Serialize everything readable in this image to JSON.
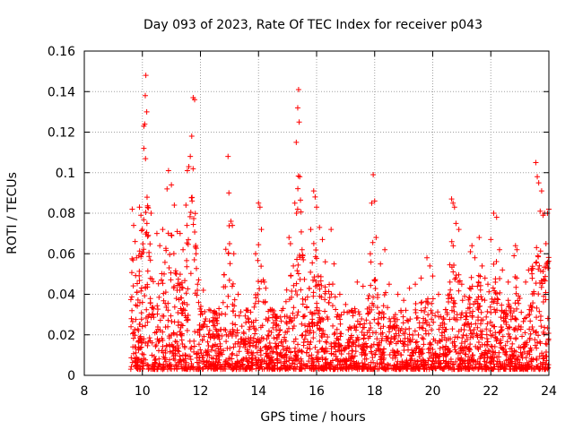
{
  "chart_data": {
    "type": "scatter",
    "title": "Day 093 of 2023, Rate Of TEC Index for receiver p043",
    "xlabel": "GPS time / hours",
    "ylabel": "ROTI / TECUs",
    "xlim": [
      8,
      24
    ],
    "ylim": [
      0,
      0.16
    ],
    "x_ticks": [
      "8",
      "10",
      "12",
      "14",
      "16",
      "18",
      "20",
      "22",
      "24"
    ],
    "y_ticks": [
      "0",
      "0.02",
      "0.04",
      "0.06",
      "0.08",
      "0.1",
      "0.12",
      "0.14",
      "0.16"
    ],
    "grid": true,
    "marker": "+",
    "color": "#ff0000",
    "time_range": [
      9.6,
      24.0
    ],
    "series": [
      {
        "name": "ROTI",
        "points": [
          [
            9.65,
            0.082
          ],
          [
            9.7,
            0.074
          ],
          [
            9.75,
            0.066
          ],
          [
            9.8,
            0.058
          ],
          [
            9.9,
            0.083
          ],
          [
            9.95,
            0.079
          ],
          [
            10.0,
            0.072
          ],
          [
            10.05,
            0.112
          ],
          [
            10.05,
            0.123
          ],
          [
            10.08,
            0.124
          ],
          [
            10.1,
            0.138
          ],
          [
            10.12,
            0.148
          ],
          [
            10.15,
            0.13
          ],
          [
            10.3,
            0.08
          ],
          [
            10.5,
            0.07
          ],
          [
            10.6,
            0.064
          ],
          [
            10.7,
            0.072
          ],
          [
            10.85,
            0.092
          ],
          [
            10.9,
            0.101
          ],
          [
            11.0,
            0.094
          ],
          [
            11.1,
            0.084
          ],
          [
            11.2,
            0.071
          ],
          [
            11.3,
            0.07
          ],
          [
            11.4,
            0.062
          ],
          [
            11.5,
            0.084
          ],
          [
            11.55,
            0.101
          ],
          [
            11.6,
            0.103
          ],
          [
            11.65,
            0.108
          ],
          [
            11.7,
            0.118
          ],
          [
            11.75,
            0.137
          ],
          [
            11.8,
            0.136
          ],
          [
            11.85,
            0.06
          ],
          [
            11.9,
            0.045
          ],
          [
            12.0,
            0.03
          ],
          [
            12.1,
            0.042
          ],
          [
            12.35,
            0.032
          ],
          [
            12.45,
            0.031
          ],
          [
            12.95,
            0.108
          ],
          [
            12.98,
            0.09
          ],
          [
            13.05,
            0.076
          ],
          [
            13.1,
            0.074
          ],
          [
            13.15,
            0.06
          ],
          [
            13.3,
            0.04
          ],
          [
            13.6,
            0.032
          ],
          [
            13.9,
            0.06
          ],
          [
            14.0,
            0.085
          ],
          [
            14.05,
            0.083
          ],
          [
            14.1,
            0.072
          ],
          [
            14.2,
            0.046
          ],
          [
            14.25,
            0.043
          ],
          [
            14.5,
            0.03
          ],
          [
            14.8,
            0.032
          ],
          [
            15.05,
            0.068
          ],
          [
            15.1,
            0.065
          ],
          [
            15.2,
            0.054
          ],
          [
            15.25,
            0.085
          ],
          [
            15.3,
            0.115
          ],
          [
            15.35,
            0.132
          ],
          [
            15.38,
            0.141
          ],
          [
            15.4,
            0.125
          ],
          [
            15.42,
            0.098
          ],
          [
            15.5,
            0.062
          ],
          [
            15.8,
            0.072
          ],
          [
            15.9,
            0.091
          ],
          [
            15.95,
            0.088
          ],
          [
            16.0,
            0.083
          ],
          [
            16.1,
            0.073
          ],
          [
            16.2,
            0.067
          ],
          [
            16.3,
            0.056
          ],
          [
            16.5,
            0.072
          ],
          [
            16.6,
            0.055
          ],
          [
            16.8,
            0.04
          ],
          [
            17.0,
            0.035
          ],
          [
            17.4,
            0.046
          ],
          [
            17.6,
            0.044
          ],
          [
            17.85,
            0.06
          ],
          [
            17.9,
            0.085
          ],
          [
            17.95,
            0.099
          ],
          [
            18.0,
            0.086
          ],
          [
            18.05,
            0.068
          ],
          [
            18.2,
            0.055
          ],
          [
            18.35,
            0.062
          ],
          [
            18.5,
            0.045
          ],
          [
            18.8,
            0.04
          ],
          [
            19.0,
            0.037
          ],
          [
            19.2,
            0.043
          ],
          [
            19.4,
            0.045
          ],
          [
            19.6,
            0.048
          ],
          [
            19.8,
            0.058
          ],
          [
            19.9,
            0.054
          ],
          [
            20.0,
            0.049
          ],
          [
            20.2,
            0.04
          ],
          [
            20.5,
            0.03
          ],
          [
            20.65,
            0.087
          ],
          [
            20.7,
            0.085
          ],
          [
            20.75,
            0.083
          ],
          [
            20.8,
            0.075
          ],
          [
            20.9,
            0.072
          ],
          [
            21.0,
            0.045
          ],
          [
            21.1,
            0.039
          ],
          [
            21.3,
            0.061
          ],
          [
            21.35,
            0.064
          ],
          [
            21.45,
            0.058
          ],
          [
            21.6,
            0.068
          ],
          [
            21.7,
            0.054
          ],
          [
            21.8,
            0.048
          ],
          [
            21.9,
            0.045
          ],
          [
            22.0,
            0.067
          ],
          [
            22.1,
            0.08
          ],
          [
            22.2,
            0.078
          ],
          [
            22.3,
            0.062
          ],
          [
            22.4,
            0.052
          ],
          [
            22.6,
            0.046
          ],
          [
            22.8,
            0.059
          ],
          [
            22.85,
            0.064
          ],
          [
            22.9,
            0.062
          ],
          [
            23.0,
            0.038
          ],
          [
            23.2,
            0.046
          ],
          [
            23.3,
            0.052
          ],
          [
            23.4,
            0.052
          ],
          [
            23.55,
            0.105
          ],
          [
            23.6,
            0.098
          ],
          [
            23.65,
            0.095
          ],
          [
            23.7,
            0.081
          ],
          [
            23.75,
            0.091
          ],
          [
            23.8,
            0.079
          ],
          [
            23.85,
            0.08
          ],
          [
            23.9,
            0.065
          ],
          [
            23.95,
            0.08
          ],
          [
            24.0,
            0.082
          ]
        ]
      }
    ]
  }
}
